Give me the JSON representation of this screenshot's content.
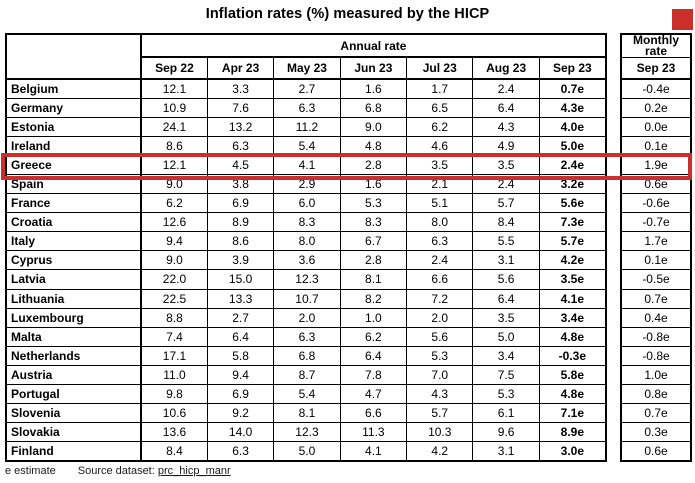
{
  "title": "Inflation rates (%) measured by the HICP",
  "colors": {
    "highlight_red": "#c9302c",
    "border": "#000000",
    "text": "#000000"
  },
  "footer": {
    "estimate_note": "e estimate",
    "source_label": "Source dataset:",
    "source_link": "prc_hicp_manr"
  },
  "chart_data": {
    "type": "table",
    "title": "Inflation rates (%) measured by the HICP",
    "column_groups": [
      "Annual rate",
      "Monthly rate"
    ],
    "annual_columns": [
      "Sep 22",
      "Apr 23",
      "May 23",
      "Jun 23",
      "Jul 23",
      "Aug 23",
      "Sep 23"
    ],
    "monthly_group_line1": "Monthly",
    "monthly_group_line2": "rate",
    "monthly_column": "Sep 23",
    "highlighted_row": "Greece",
    "rows": [
      {
        "country": "Belgium",
        "annual": [
          "12.1",
          "3.3",
          "2.7",
          "1.6",
          "1.7",
          "2.4",
          "0.7e"
        ],
        "monthly": "-0.4e"
      },
      {
        "country": "Germany",
        "annual": [
          "10.9",
          "7.6",
          "6.3",
          "6.8",
          "6.5",
          "6.4",
          "4.3e"
        ],
        "monthly": "0.2e"
      },
      {
        "country": "Estonia",
        "annual": [
          "24.1",
          "13.2",
          "11.2",
          "9.0",
          "6.2",
          "4.3",
          "4.0e"
        ],
        "monthly": "0.0e"
      },
      {
        "country": "Ireland",
        "annual": [
          "8.6",
          "6.3",
          "5.4",
          "4.8",
          "4.6",
          "4.9",
          "5.0e"
        ],
        "monthly": "0.1e"
      },
      {
        "country": "Greece",
        "annual": [
          "12.1",
          "4.5",
          "4.1",
          "2.8",
          "3.5",
          "3.5",
          "2.4e"
        ],
        "monthly": "1.9e"
      },
      {
        "country": "Spain",
        "annual": [
          "9.0",
          "3.8",
          "2.9",
          "1.6",
          "2.1",
          "2.4",
          "3.2e"
        ],
        "monthly": "0.6e"
      },
      {
        "country": "France",
        "annual": [
          "6.2",
          "6.9",
          "6.0",
          "5.3",
          "5.1",
          "5.7",
          "5.6e"
        ],
        "monthly": "-0.6e"
      },
      {
        "country": "Croatia",
        "annual": [
          "12.6",
          "8.9",
          "8.3",
          "8.3",
          "8.0",
          "8.4",
          "7.3e"
        ],
        "monthly": "-0.7e"
      },
      {
        "country": "Italy",
        "annual": [
          "9.4",
          "8.6",
          "8.0",
          "6.7",
          "6.3",
          "5.5",
          "5.7e"
        ],
        "monthly": "1.7e"
      },
      {
        "country": "Cyprus",
        "annual": [
          "9.0",
          "3.9",
          "3.6",
          "2.8",
          "2.4",
          "3.1",
          "4.2e"
        ],
        "monthly": "0.1e"
      },
      {
        "country": "Latvia",
        "annual": [
          "22.0",
          "15.0",
          "12.3",
          "8.1",
          "6.6",
          "5.6",
          "3.5e"
        ],
        "monthly": "-0.5e"
      },
      {
        "country": "Lithuania",
        "annual": [
          "22.5",
          "13.3",
          "10.7",
          "8.2",
          "7.2",
          "6.4",
          "4.1e"
        ],
        "monthly": "0.7e"
      },
      {
        "country": "Luxembourg",
        "annual": [
          "8.8",
          "2.7",
          "2.0",
          "1.0",
          "2.0",
          "3.5",
          "3.4e"
        ],
        "monthly": "0.4e"
      },
      {
        "country": "Malta",
        "annual": [
          "7.4",
          "6.4",
          "6.3",
          "6.2",
          "5.6",
          "5.0",
          "4.8e"
        ],
        "monthly": "-0.8e"
      },
      {
        "country": "Netherlands",
        "annual": [
          "17.1",
          "5.8",
          "6.8",
          "6.4",
          "5.3",
          "3.4",
          "-0.3e"
        ],
        "monthly": "-0.8e"
      },
      {
        "country": "Austria",
        "annual": [
          "11.0",
          "9.4",
          "8.7",
          "7.8",
          "7.0",
          "7.5",
          "5.8e"
        ],
        "monthly": "1.0e"
      },
      {
        "country": "Portugal",
        "annual": [
          "9.8",
          "6.9",
          "5.4",
          "4.7",
          "4.3",
          "5.3",
          "4.8e"
        ],
        "monthly": "0.8e"
      },
      {
        "country": "Slovenia",
        "annual": [
          "10.6",
          "9.2",
          "8.1",
          "6.6",
          "5.7",
          "6.1",
          "7.1e"
        ],
        "monthly": "0.7e"
      },
      {
        "country": "Slovakia",
        "annual": [
          "13.6",
          "14.0",
          "12.3",
          "11.3",
          "10.3",
          "9.6",
          "8.9e"
        ],
        "monthly": "0.3e"
      },
      {
        "country": "Finland",
        "annual": [
          "8.4",
          "6.3",
          "5.0",
          "4.1",
          "4.2",
          "3.1",
          "3.0e"
        ],
        "monthly": "0.6e"
      }
    ],
    "layout": {
      "grid": true,
      "highlight_style": "red-border-box",
      "note": "e = estimate"
    }
  }
}
